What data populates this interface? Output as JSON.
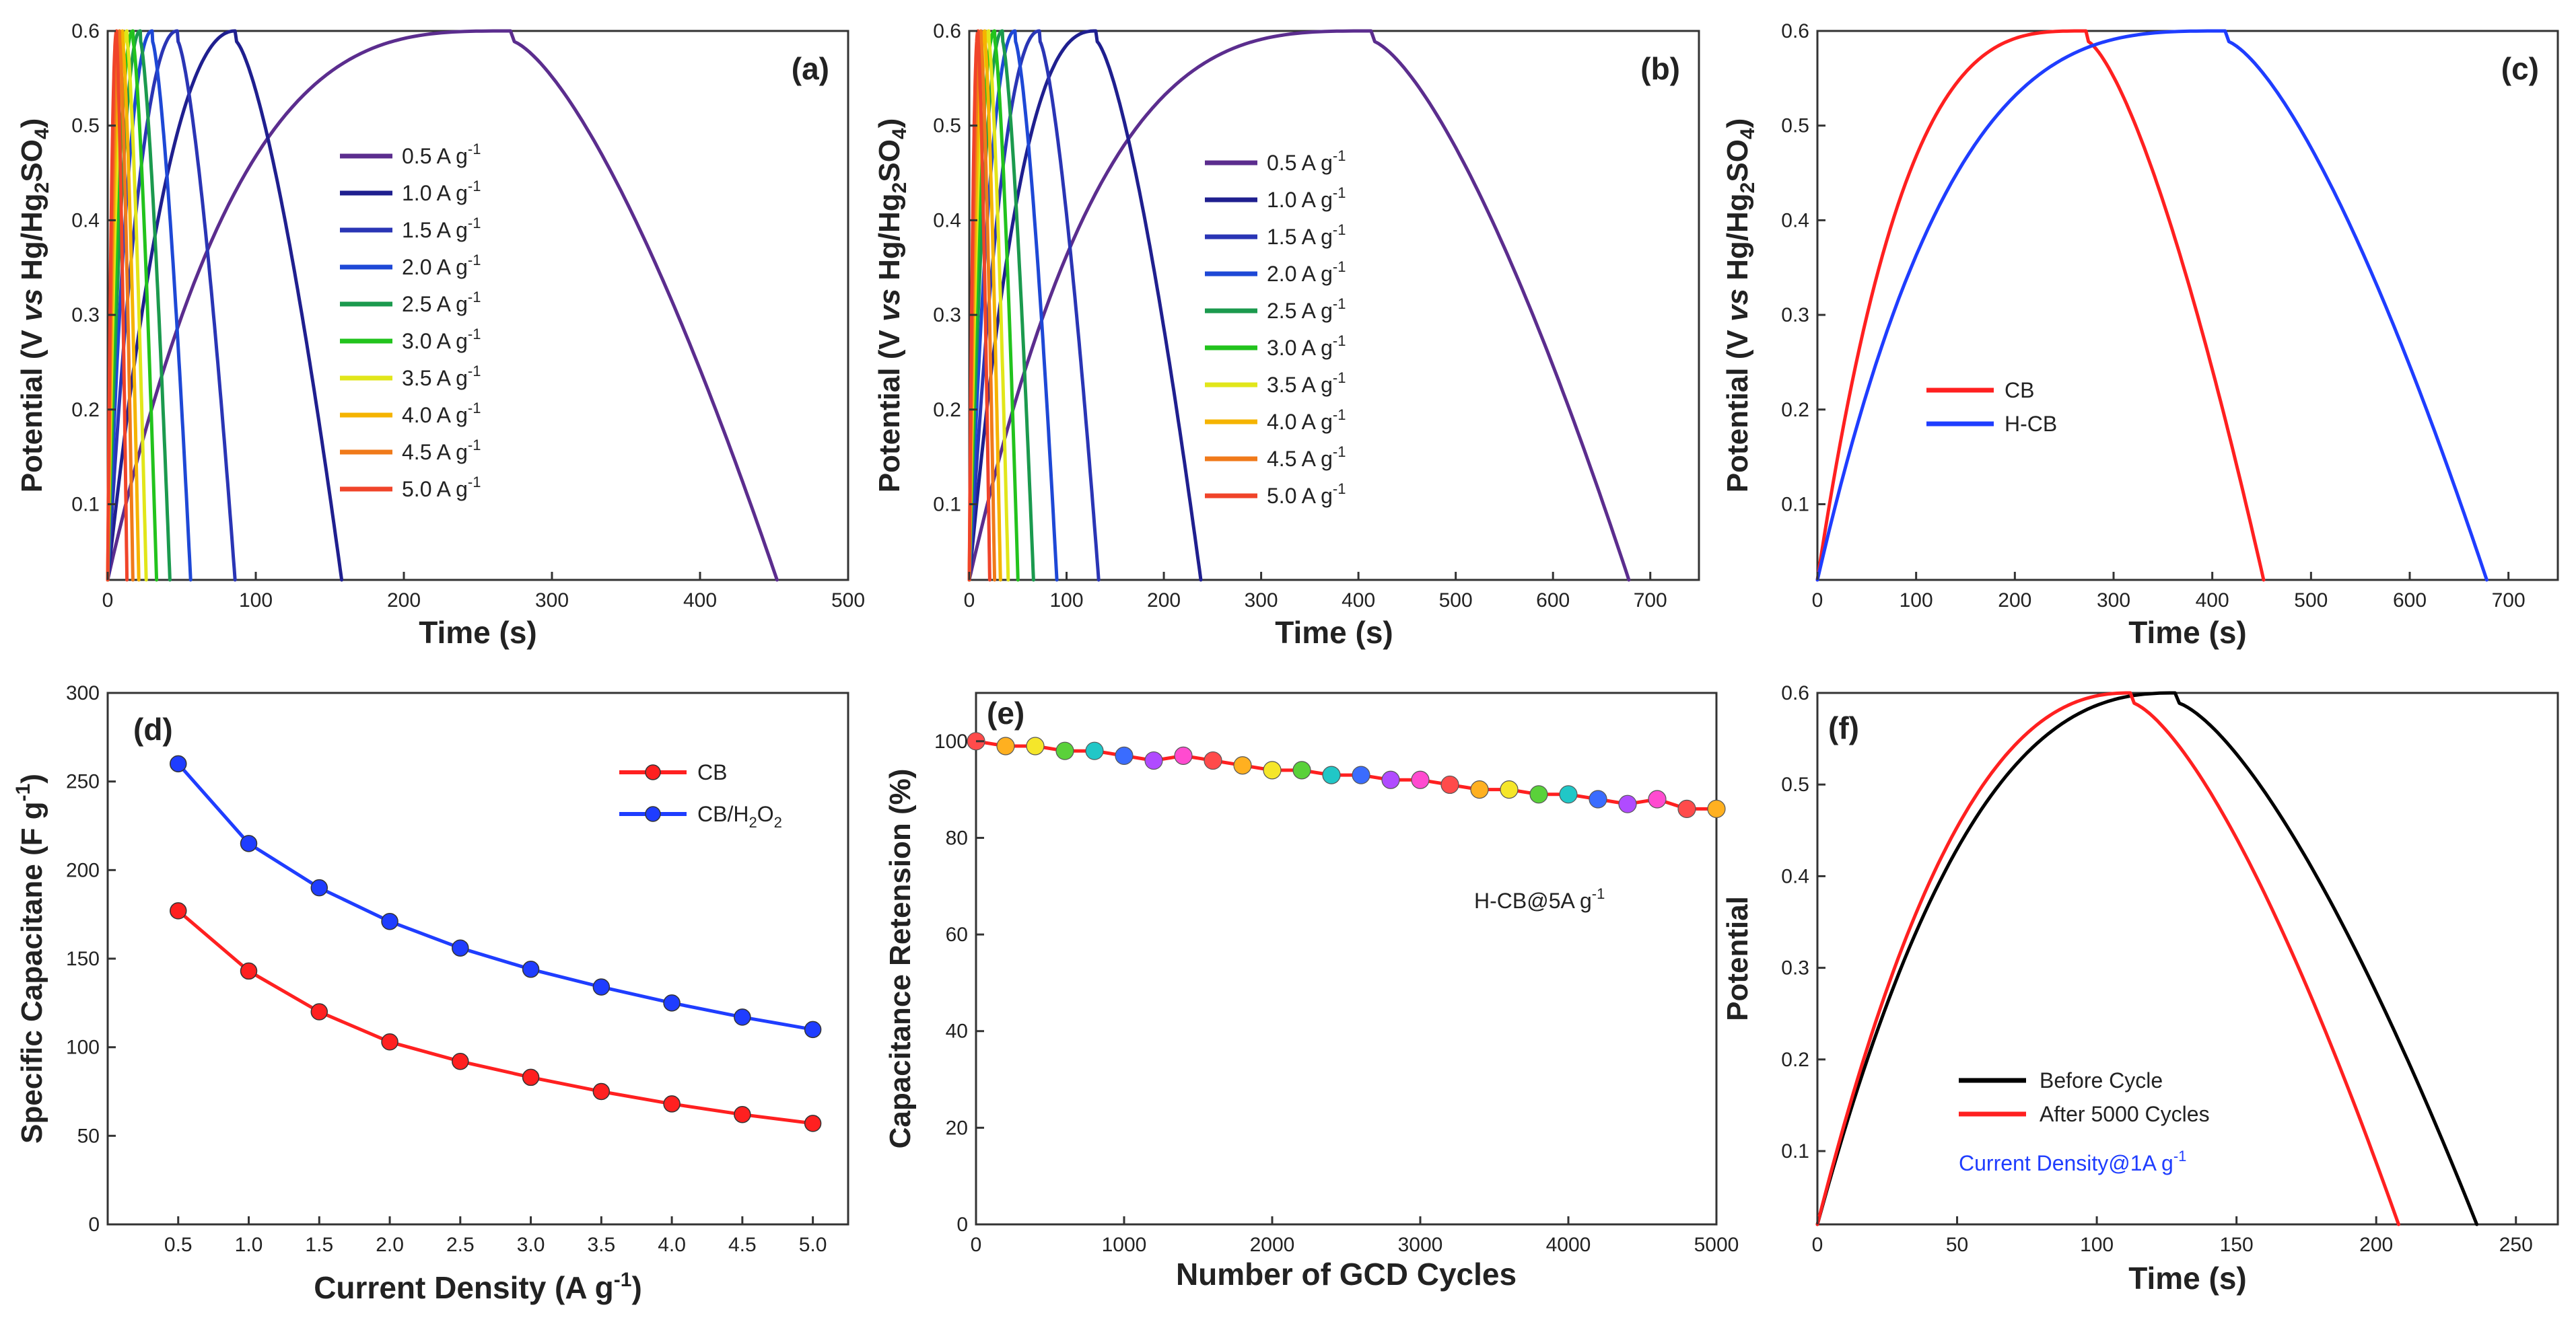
{
  "colors": {
    "rate_palette": [
      "#5b2d8e",
      "#1f1f8f",
      "#2a35b5",
      "#1e48d6",
      "#1b9a4e",
      "#22c31d",
      "#e1e61a",
      "#f5b400",
      "#f07a1a",
      "#f0442a"
    ],
    "cb": "#ff2020",
    "hcb": "#1f3dff",
    "before": "#000000",
    "after": "#ff2020",
    "note_blue": "#1f3dff"
  },
  "chart_data": [
    {
      "id": "a",
      "type": "line",
      "panel_label": "(a)",
      "xlabel": "Time (s)",
      "ylabel": {
        "pre": "Potential (V ",
        "italic": "vs",
        "mid": " Hg/Hg",
        "sub1": "2",
        "so": "SO",
        "sub2": "4",
        "close": ")"
      },
      "xlim": [
        0,
        500
      ],
      "ylim": [
        0.02,
        0.6
      ],
      "xticks": [
        0,
        100,
        200,
        300,
        400,
        500
      ],
      "yticks": [
        0.1,
        0.2,
        0.3,
        0.4,
        0.5,
        0.6
      ],
      "legend_position": "center",
      "legend": [
        "0.5 A g",
        "1.0 A g",
        "1.5 A g",
        "2.0 A g",
        "2.5 A g",
        "3.0 A g",
        "3.5 A g",
        "4.0 A g",
        "4.5 A g",
        "5.0 A g"
      ],
      "legend_sup": "-1",
      "series": [
        {
          "name": "0.5 A g-1",
          "t_charge": 272,
          "t_end": 452
        },
        {
          "name": "1.0 A g-1",
          "t_charge": 86,
          "t_end": 158
        },
        {
          "name": "1.5 A g-1",
          "t_charge": 47,
          "t_end": 86
        },
        {
          "name": "2.0 A g-1",
          "t_charge": 30,
          "t_end": 56
        },
        {
          "name": "2.5 A g-1",
          "t_charge": 22,
          "t_end": 42
        },
        {
          "name": "3.0 A g-1",
          "t_charge": 17,
          "t_end": 33
        },
        {
          "name": "3.5 A g-1",
          "t_charge": 13,
          "t_end": 26
        },
        {
          "name": "4.0 A g-1",
          "t_charge": 10,
          "t_end": 21
        },
        {
          "name": "4.5 A g-1",
          "t_charge": 8,
          "t_end": 17
        },
        {
          "name": "5.0 A g-1",
          "t_charge": 6,
          "t_end": 13
        }
      ]
    },
    {
      "id": "b",
      "type": "line",
      "panel_label": "(b)",
      "xlabel": "Time (s)",
      "ylabel": {
        "pre": "Potential (V ",
        "italic": "vs",
        "mid": " Hg/Hg",
        "sub1": "2",
        "so": "SO",
        "sub2": "4",
        "close": ")"
      },
      "xlim": [
        0,
        750
      ],
      "ylim": [
        0.02,
        0.6
      ],
      "xticks": [
        0,
        100,
        200,
        300,
        400,
        500,
        600,
        700
      ],
      "yticks": [
        0.1,
        0.2,
        0.3,
        0.4,
        0.5,
        0.6
      ],
      "legend_position": "center",
      "legend": [
        "0.5 A g",
        "1.0 A g",
        "1.5 A g",
        "2.0 A g",
        "2.5 A g",
        "3.0 A g",
        "3.5 A g",
        "4.0 A g",
        "4.5 A g",
        "5.0 A g"
      ],
      "legend_sup": "-1",
      "series": [
        {
          "name": "0.5 A g-1",
          "t_charge": 413,
          "t_end": 678
        },
        {
          "name": "1.0 A g-1",
          "t_charge": 130,
          "t_end": 238
        },
        {
          "name": "1.5 A g-1",
          "t_charge": 72,
          "t_end": 133
        },
        {
          "name": "2.0 A g-1",
          "t_charge": 47,
          "t_end": 90
        },
        {
          "name": "2.5 A g-1",
          "t_charge": 34,
          "t_end": 66
        },
        {
          "name": "3.0 A g-1",
          "t_charge": 26,
          "t_end": 50
        },
        {
          "name": "3.5 A g-1",
          "t_charge": 20,
          "t_end": 40
        },
        {
          "name": "4.0 A g-1",
          "t_charge": 16,
          "t_end": 32
        },
        {
          "name": "4.5 A g-1",
          "t_charge": 12,
          "t_end": 26
        },
        {
          "name": "5.0 A g-1",
          "t_charge": 9,
          "t_end": 21
        }
      ]
    },
    {
      "id": "c",
      "type": "line",
      "panel_label": "(c)",
      "xlabel": "Time (s)",
      "ylabel": {
        "pre": "Potential (V ",
        "italic": "vs",
        "mid": " Hg/Hg",
        "sub1": "2",
        "so": "SO",
        "sub2": "4",
        "close": ")"
      },
      "xlim": [
        0,
        750
      ],
      "ylim": [
        0.02,
        0.6
      ],
      "xticks": [
        0,
        100,
        200,
        300,
        400,
        500,
        600,
        700
      ],
      "yticks": [
        0.1,
        0.2,
        0.3,
        0.4,
        0.5,
        0.6
      ],
      "legend_position": "left",
      "legend": [
        "CB",
        "H-CB"
      ],
      "series": [
        {
          "name": "CB",
          "t_charge": 272,
          "t_end": 452
        },
        {
          "name": "H-CB",
          "t_charge": 413,
          "t_end": 678
        }
      ]
    },
    {
      "id": "d",
      "type": "line",
      "panel_label": "(d)",
      "xlabel": "Current Density (A g",
      "xlabel_sup": "-1",
      "xlabel_close": ")",
      "ylabel": {
        "pre": "Specific Capacitane (F g",
        "sup": "-1",
        "close": ")"
      },
      "xlim": [
        0,
        5.25
      ],
      "ylim": [
        0,
        300
      ],
      "xticks": [
        0.5,
        1.0,
        1.5,
        2.0,
        2.5,
        3.0,
        3.5,
        4.0,
        4.5,
        5.0
      ],
      "xtick_labels": [
        "0.5",
        "1.0",
        "1.5",
        "2.0",
        "2.5",
        "3.0",
        "3.5",
        "4.0",
        "4.5",
        "5.0"
      ],
      "yticks": [
        0,
        50,
        100,
        150,
        200,
        250,
        300
      ],
      "legend_position": "top-right",
      "legend": [
        {
          "text": "CB"
        },
        {
          "text": "CB/H",
          "sub": "2",
          "mid": "O",
          "sub2": "2"
        }
      ],
      "x": [
        0.5,
        1.0,
        1.5,
        2.0,
        2.5,
        3.0,
        3.5,
        4.0,
        4.5,
        5.0
      ],
      "series": [
        {
          "name": "CB",
          "values": [
            177,
            143,
            120,
            103,
            92,
            83,
            75,
            68,
            62,
            57
          ]
        },
        {
          "name": "CB/H2O2",
          "values": [
            260,
            215,
            190,
            171,
            156,
            144,
            134,
            125,
            117,
            110
          ]
        }
      ]
    },
    {
      "id": "e",
      "type": "scatter",
      "panel_label": "(e)",
      "xlabel": "Number of GCD Cycles",
      "ylabel": {
        "pre": "Capacitance Retension (%)"
      },
      "xlim": [
        0,
        5000
      ],
      "ylim": [
        0,
        110
      ],
      "xticks": [
        0,
        1000,
        2000,
        3000,
        4000,
        5000
      ],
      "yticks": [
        0,
        20,
        40,
        60,
        80,
        100
      ],
      "annotation": "H-CB@5A g",
      "annotation_sup": "-1",
      "cycles": [
        0,
        200,
        400,
        600,
        800,
        1000,
        1200,
        1400,
        1600,
        1800,
        2000,
        2200,
        2400,
        2600,
        2800,
        3000,
        3200,
        3400,
        3600,
        3800,
        4000,
        4200,
        4400,
        4600,
        4800,
        5000
      ],
      "retention": [
        100,
        99,
        99,
        98,
        98,
        97,
        96,
        97,
        96,
        95,
        94,
        94,
        93,
        93,
        92,
        92,
        91,
        90,
        90,
        89,
        89,
        88,
        87,
        88,
        86,
        86
      ]
    },
    {
      "id": "f",
      "type": "line",
      "panel_label": "(f)",
      "xlabel": "Time (s)",
      "ylabel": {
        "pre": "Potential"
      },
      "xlim": [
        0,
        265
      ],
      "ylim": [
        0.02,
        0.6
      ],
      "xticks": [
        0,
        50,
        100,
        150,
        200,
        250
      ],
      "yticks": [
        0.1,
        0.2,
        0.3,
        0.4,
        0.5,
        0.6
      ],
      "legend_position": "bottom-left",
      "legend": [
        "Before Cycle",
        "After 5000 Cycles"
      ],
      "note": "Current Density@1A g",
      "note_sup": "-1",
      "series": [
        {
          "name": "Before Cycle",
          "t_charge": 128,
          "t_end": 236
        },
        {
          "name": "After 5000 Cycles",
          "t_charge": 112,
          "t_end": 208
        }
      ]
    }
  ]
}
